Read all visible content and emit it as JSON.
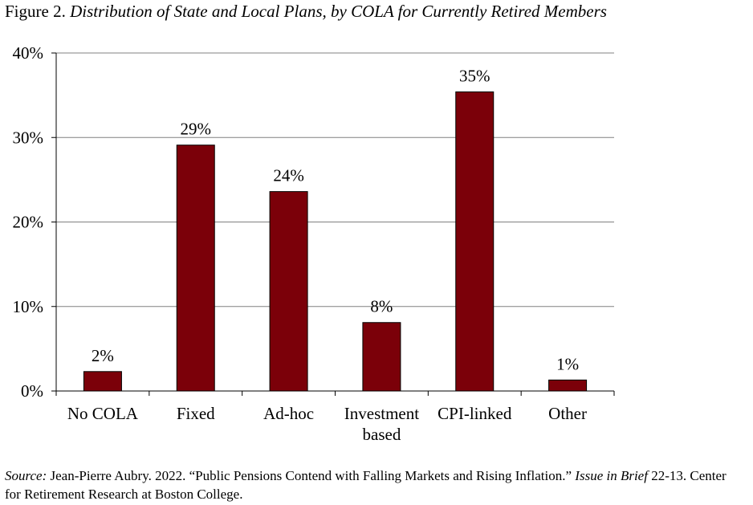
{
  "figure": {
    "label": "Figure 2.",
    "title": "Distribution of State and Local Plans, by COLA for Currently Retired Members"
  },
  "chart_data": {
    "type": "bar",
    "title": "Distribution of State and Local Plans, by COLA for Currently Retired Members",
    "categories": [
      [
        "No COLA"
      ],
      [
        "Fixed"
      ],
      [
        "Ad-hoc"
      ],
      [
        "Investment",
        "based"
      ],
      [
        "CPI-linked"
      ],
      [
        "Other"
      ]
    ],
    "values": [
      2.3,
      29.1,
      23.6,
      8.1,
      35.4,
      1.3
    ],
    "data_labels": [
      "2%",
      "29%",
      "24%",
      "8%",
      "35%",
      "1%"
    ],
    "ylim": [
      0,
      40
    ],
    "yticks": [
      0,
      10,
      20,
      30,
      40
    ],
    "ytick_labels": [
      "0%",
      "10%",
      "20%",
      "30%",
      "40%"
    ],
    "grid": true,
    "bar_color": "#7b0009",
    "xlabel": "",
    "ylabel": ""
  },
  "source": {
    "label": "Source:",
    "text_1": " Jean-Pierre Aubry. 2022. “Public Pensions Contend with Falling Markets and Rising Inflation.” ",
    "italic": "Issue in Brief",
    "text_2": " 22-13. Center for Retirement Research at Boston College."
  }
}
